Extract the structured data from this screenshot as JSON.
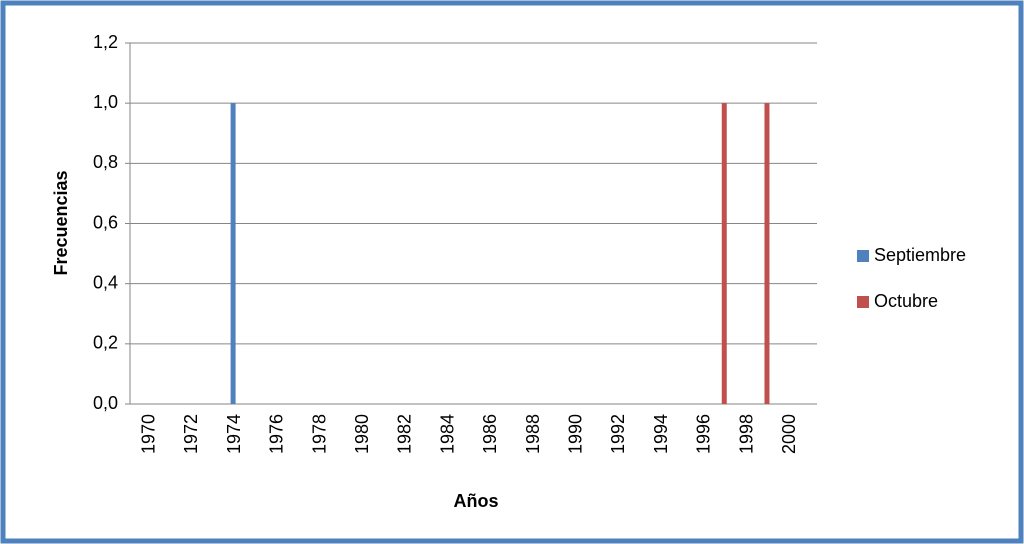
{
  "chart_data": {
    "type": "bar",
    "x_label": "Años",
    "y_label": "Frecuencias",
    "categories": [
      "1970",
      null,
      "1972",
      null,
      "1974",
      null,
      "1976",
      null,
      "1978",
      null,
      "1980",
      null,
      "1982",
      null,
      "1984",
      null,
      "1986",
      null,
      "1988",
      null,
      "1990",
      null,
      "1992",
      null,
      "1994",
      null,
      "1996",
      null,
      "1998",
      null,
      "2000"
    ],
    "series": [
      {
        "name": "Septiembre",
        "color": "#4f81bd",
        "values": [
          0,
          0,
          0,
          0,
          1,
          0,
          0,
          0,
          0,
          0,
          0,
          0,
          0,
          0,
          0,
          0,
          0,
          0,
          0,
          0,
          0,
          0,
          0,
          0,
          0,
          0,
          0,
          0,
          0,
          0,
          0
        ]
      },
      {
        "name": "Octubre",
        "color": "#c0504d",
        "values": [
          0,
          0,
          0,
          0,
          0,
          0,
          0,
          0,
          0,
          0,
          0,
          0,
          0,
          0,
          0,
          0,
          0,
          0,
          0,
          0,
          0,
          0,
          0,
          0,
          0,
          0,
          0,
          1,
          0,
          1,
          0
        ]
      }
    ],
    "ylim": [
      0,
      1.2
    ],
    "yticks": [
      {
        "value": 0,
        "label": "0,0"
      },
      {
        "value": 0.2,
        "label": "0,2"
      },
      {
        "value": 0.4,
        "label": "0,4"
      },
      {
        "value": 0.6,
        "label": "0,6"
      },
      {
        "value": 0.8,
        "label": "0,8"
      },
      {
        "value": 1.0,
        "label": "1,0"
      },
      {
        "value": 1.2,
        "label": "1,2"
      }
    ],
    "grid": true,
    "legend": "right"
  }
}
